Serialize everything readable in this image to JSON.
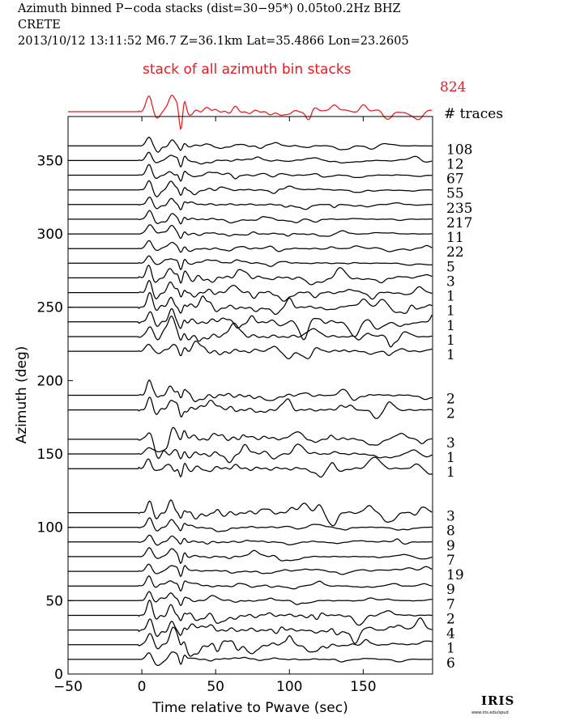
{
  "header": {
    "line1": "Azimuth binned P−coda stacks (dist=30−95*)  0.05to0.2Hz  BHZ",
    "line2": "CRETE",
    "line3": "2013/10/12  13:11:52  M6.7  Z=36.1km Lat=35.4866 Lon=23.2605"
  },
  "logo": {
    "text": "IRIS",
    "sub": "www.iris.edu/spud"
  },
  "colors": {
    "stack": "#e8191f",
    "trace": "#000000"
  },
  "chart_data": {
    "type": "line",
    "top_stack": {
      "label": "stack of all azimuth bin stacks",
      "count": "824",
      "count_header": "# traces"
    },
    "xlabel": "Time relative to Pwave (sec)",
    "ylabel": "Azimuth (deg)",
    "xlim": [
      -50,
      197
    ],
    "ylim": [
      0,
      380
    ],
    "xticks": [
      -50,
      0,
      50,
      100,
      150
    ],
    "yticks": [
      0,
      50,
      100,
      150,
      200,
      250,
      300,
      350
    ],
    "bins": [
      {
        "azimuth": 360,
        "traces": "108"
      },
      {
        "azimuth": 350,
        "traces": "12"
      },
      {
        "azimuth": 340,
        "traces": "67"
      },
      {
        "azimuth": 330,
        "traces": "55"
      },
      {
        "azimuth": 320,
        "traces": "235"
      },
      {
        "azimuth": 310,
        "traces": "217"
      },
      {
        "azimuth": 300,
        "traces": "11"
      },
      {
        "azimuth": 290,
        "traces": "22"
      },
      {
        "azimuth": 280,
        "traces": "5"
      },
      {
        "azimuth": 270,
        "traces": "3"
      },
      {
        "azimuth": 260,
        "traces": "1"
      },
      {
        "azimuth": 250,
        "traces": "1"
      },
      {
        "azimuth": 240,
        "traces": "1"
      },
      {
        "azimuth": 230,
        "traces": "1"
      },
      {
        "azimuth": 220,
        "traces": "1"
      },
      {
        "azimuth": 190,
        "traces": "2"
      },
      {
        "azimuth": 180,
        "traces": "2"
      },
      {
        "azimuth": 160,
        "traces": "3"
      },
      {
        "azimuth": 150,
        "traces": "1"
      },
      {
        "azimuth": 140,
        "traces": "1"
      },
      {
        "azimuth": 110,
        "traces": "3"
      },
      {
        "azimuth": 100,
        "traces": "8"
      },
      {
        "azimuth": 90,
        "traces": "9"
      },
      {
        "azimuth": 80,
        "traces": "7"
      },
      {
        "azimuth": 70,
        "traces": "19"
      },
      {
        "azimuth": 60,
        "traces": "9"
      },
      {
        "azimuth": 50,
        "traces": "7"
      },
      {
        "azimuth": 40,
        "traces": "2"
      },
      {
        "azimuth": 30,
        "traces": "4"
      },
      {
        "azimuth": 20,
        "traces": "1"
      },
      {
        "azimuth": 10,
        "traces": "6"
      }
    ]
  }
}
